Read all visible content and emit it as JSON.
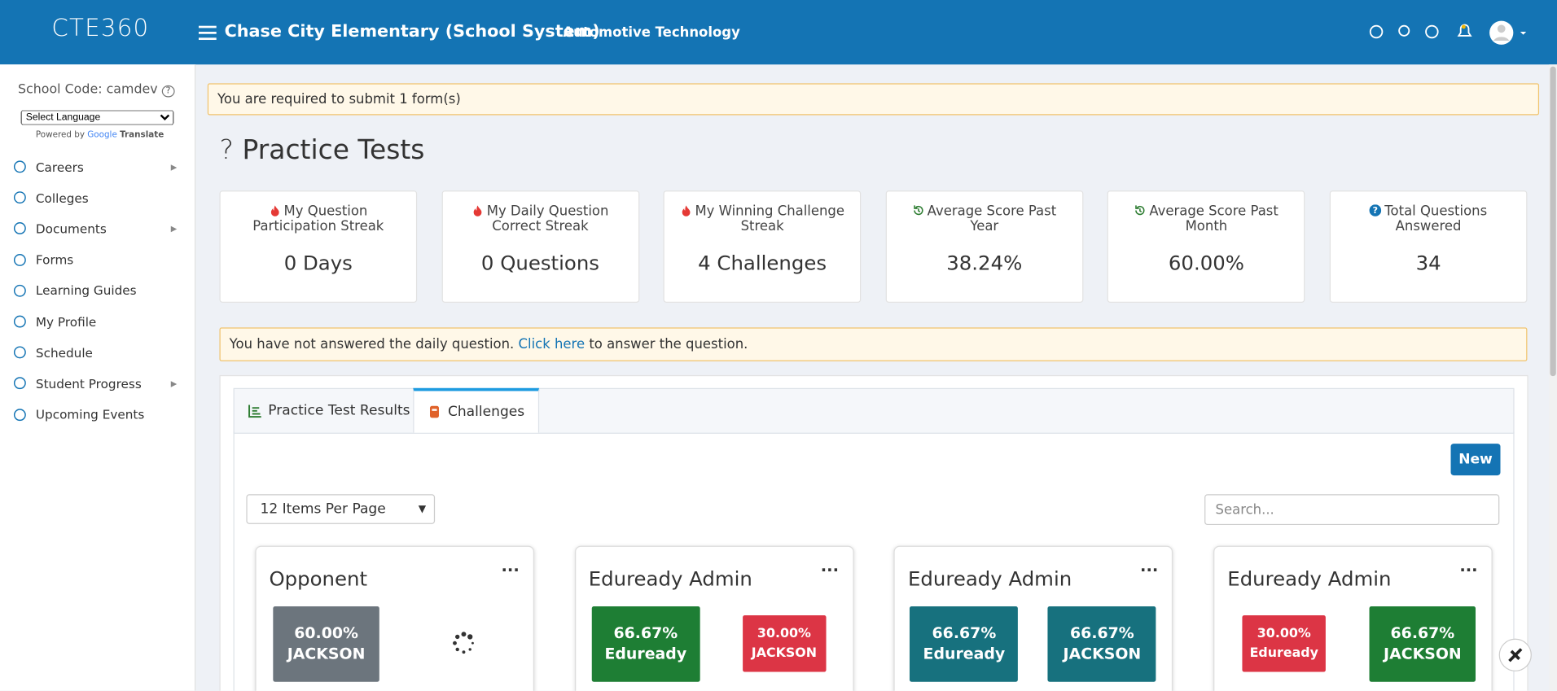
{
  "header": {
    "logo": "CTE360",
    "school": "Chase City Elementary (School System)",
    "program": "Automotive Technology"
  },
  "sidebar": {
    "school_code": "School Code: camdev",
    "language": "Select Language",
    "powered_by": "Powered by",
    "google": "Google",
    "translate": "Translate",
    "items": [
      "Careers",
      "Colleges",
      "Documents",
      "Forms",
      "Learning Guides",
      "My Profile",
      "Schedule",
      "Student Progress",
      "Upcoming Events"
    ]
  },
  "alert_form": "You are required to submit 1 form(s)",
  "page_title": "Practice Tests",
  "stats": [
    {
      "label": "My Question Participation Streak",
      "value": "0 Days"
    },
    {
      "label": "My Daily Question Correct Streak",
      "value": "0 Questions"
    },
    {
      "label": "My Winning Challenge Streak",
      "value": "4 Challenges"
    },
    {
      "label": "Average Score Past Year",
      "value": "38.24%"
    },
    {
      "label": "Average Score Past Month",
      "value": "60.00%"
    },
    {
      "label": "Total Questions Answered",
      "value": "34"
    }
  ],
  "alert_daily": {
    "before": "You have not answered the daily question.",
    "link": "Click here",
    "after": "to answer the question."
  },
  "tabs": [
    "Practice Test Results",
    "Challenges"
  ],
  "new_button": "New",
  "per_page": "12 Items Per Page",
  "search_placeholder": "Search...",
  "challenges": [
    {
      "title": "Opponent",
      "scores": [
        {
          "value": "60.00%",
          "name": "JACKSON"
        }
      ]
    },
    {
      "title": "Eduready Admin",
      "scores": [
        {
          "value": "66.67%",
          "name": "Eduready"
        },
        {
          "value": "30.00%",
          "name": "JACKSON"
        }
      ]
    },
    {
      "title": "Eduready Admin",
      "scores": [
        {
          "value": "66.67%",
          "name": "Eduready"
        },
        {
          "value": "66.67%",
          "name": "JACKSON"
        }
      ]
    },
    {
      "title": "Eduready Admin",
      "scores": [
        {
          "value": "30.00%",
          "name": "Eduready"
        },
        {
          "value": "66.67%",
          "name": "JACKSON"
        }
      ]
    }
  ]
}
